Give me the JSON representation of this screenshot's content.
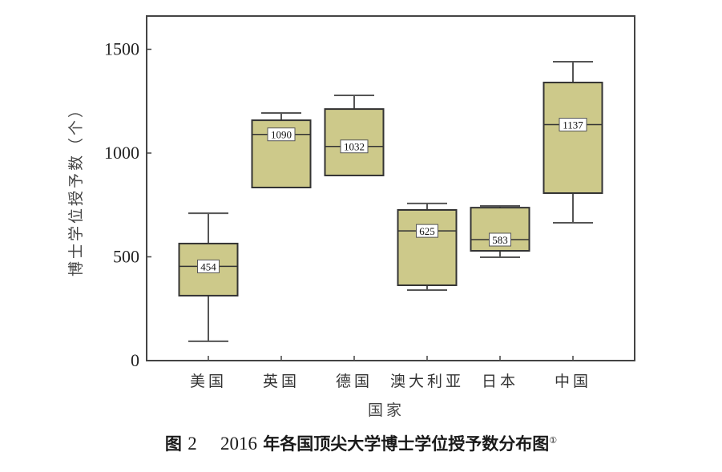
{
  "chart_data": {
    "type": "box",
    "title": "图 2 2016 年各国顶尖大学博士学位授予数分布图①",
    "xlabel": "国家",
    "ylabel": "博士学位授予数（个）",
    "ylim": [
      0,
      1660
    ],
    "yticks": [
      0,
      500,
      1000,
      1500
    ],
    "grid": false,
    "categories": [
      "美国",
      "英国",
      "德国",
      "澳大利亚",
      "日本",
      "中国"
    ],
    "series": [
      {
        "name": "美国",
        "min": 93,
        "q1": 313,
        "median": 454,
        "q3": 564,
        "max": 710,
        "median_label": "454"
      },
      {
        "name": "英国",
        "min": 834,
        "q1": 834,
        "median": 1090,
        "q3": 1158,
        "max": 1193,
        "median_label": "1090"
      },
      {
        "name": "德国",
        "min": 892,
        "q1": 892,
        "median": 1032,
        "q3": 1212,
        "max": 1278,
        "median_label": "1032"
      },
      {
        "name": "澳大利亚",
        "min": 340,
        "q1": 363,
        "median": 625,
        "q3": 726,
        "max": 757,
        "median_label": "625"
      },
      {
        "name": "日本",
        "min": 498,
        "q1": 529,
        "median": 583,
        "q3": 737,
        "max": 745,
        "median_label": "583"
      },
      {
        "name": "中国",
        "min": 664,
        "q1": 807,
        "median": 1137,
        "q3": 1340,
        "max": 1440,
        "median_label": "1137"
      }
    ],
    "colors": {
      "box_fill": "#cdc98a",
      "box_stroke": "#333333",
      "whisker": "#555555",
      "frame": "#444444"
    }
  },
  "caption": {
    "figure": "图",
    "figure_num": "2",
    "year": "2016",
    "text": "年各国顶尖大学博士学位授予数分布图",
    "footnote": "①"
  }
}
